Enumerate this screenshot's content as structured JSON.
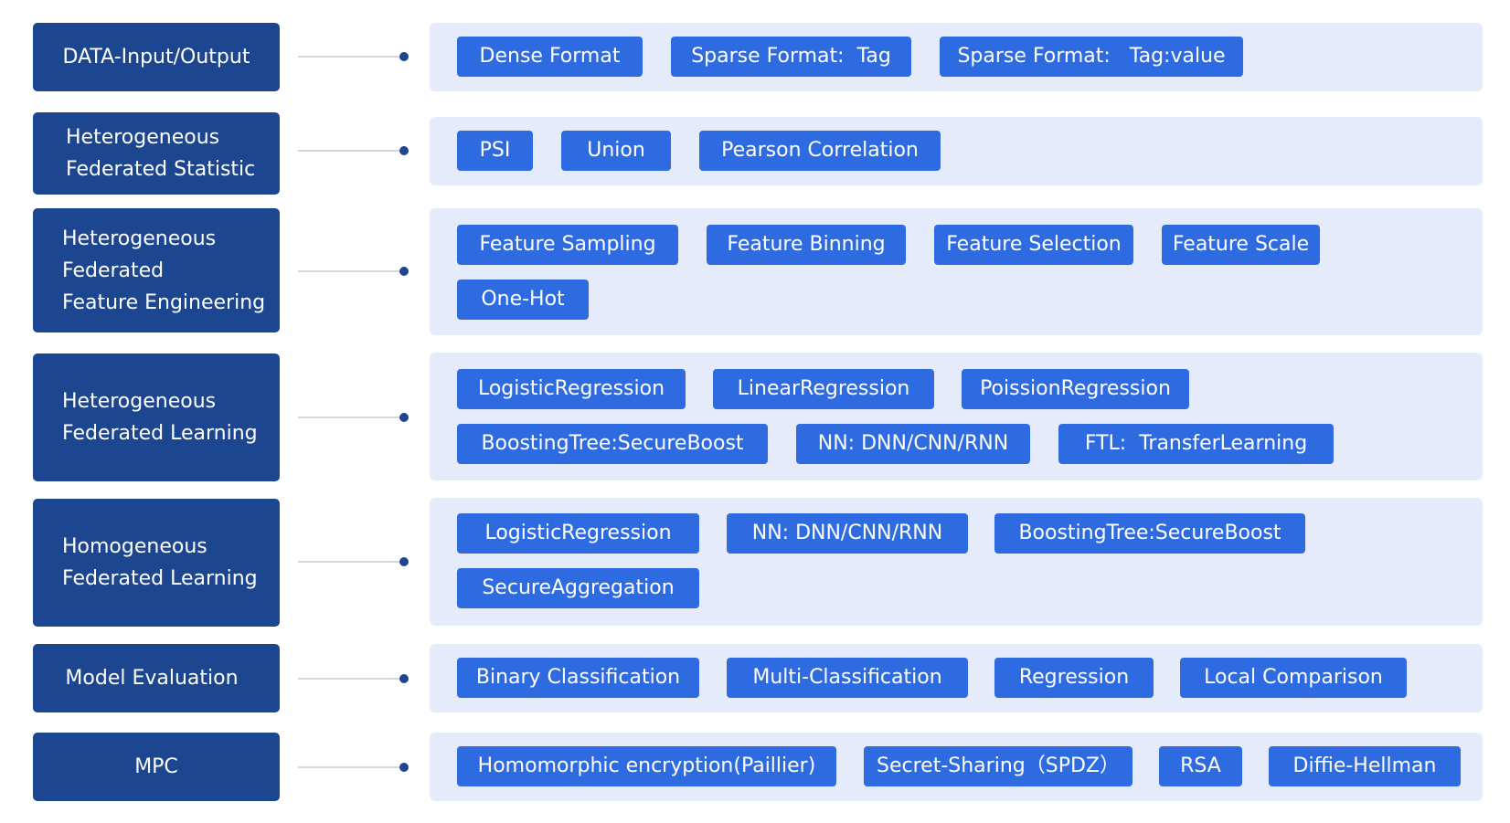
{
  "colors": {
    "category_bg": "#1d4690",
    "panel_bg": "#e6ebfb",
    "tag_bg": "#2f6be0",
    "connector_line": "#d4d8de",
    "connector_dot": "#1d4690",
    "text": "#ffffff"
  },
  "rows": [
    {
      "category": "DATA-Input/Output",
      "tags": [
        "Dense Format",
        "Sparse Format:  Tag",
        "Sparse Format:   Tag:value"
      ]
    },
    {
      "category": "Heterogeneous\nFederated Statistic",
      "tags": [
        "PSI",
        "Union",
        "Pearson Correlation"
      ]
    },
    {
      "category": "Heterogeneous\nFederated\nFeature Engineering",
      "tags": [
        "Feature Sampling",
        "Feature Binning",
        "Feature Selection",
        "Feature Scale",
        "One-Hot"
      ]
    },
    {
      "category": "Heterogeneous\nFederated  Learning",
      "tags": [
        "LogisticRegression",
        "LinearRegression",
        "PoissionRegression",
        "BoostingTree:SecureBoost",
        "NN: DNN/CNN/RNN",
        "FTL:  TransferLearning"
      ]
    },
    {
      "category": "Homogeneous\nFederated  Learning",
      "tags": [
        "LogisticRegression",
        "NN: DNN/CNN/RNN",
        "BoostingTree:SecureBoost",
        "SecureAggregation"
      ]
    },
    {
      "category": "Model Evaluation",
      "tags": [
        "Binary Classification",
        "Multi-Classification",
        "Regression",
        "Local Comparison"
      ]
    },
    {
      "category": "MPC",
      "tags": [
        "Homomorphic encryption(Paillier)",
        "Secret-Sharing（SPDZ）",
        "RSA",
        "Diffie-Hellman"
      ]
    }
  ]
}
